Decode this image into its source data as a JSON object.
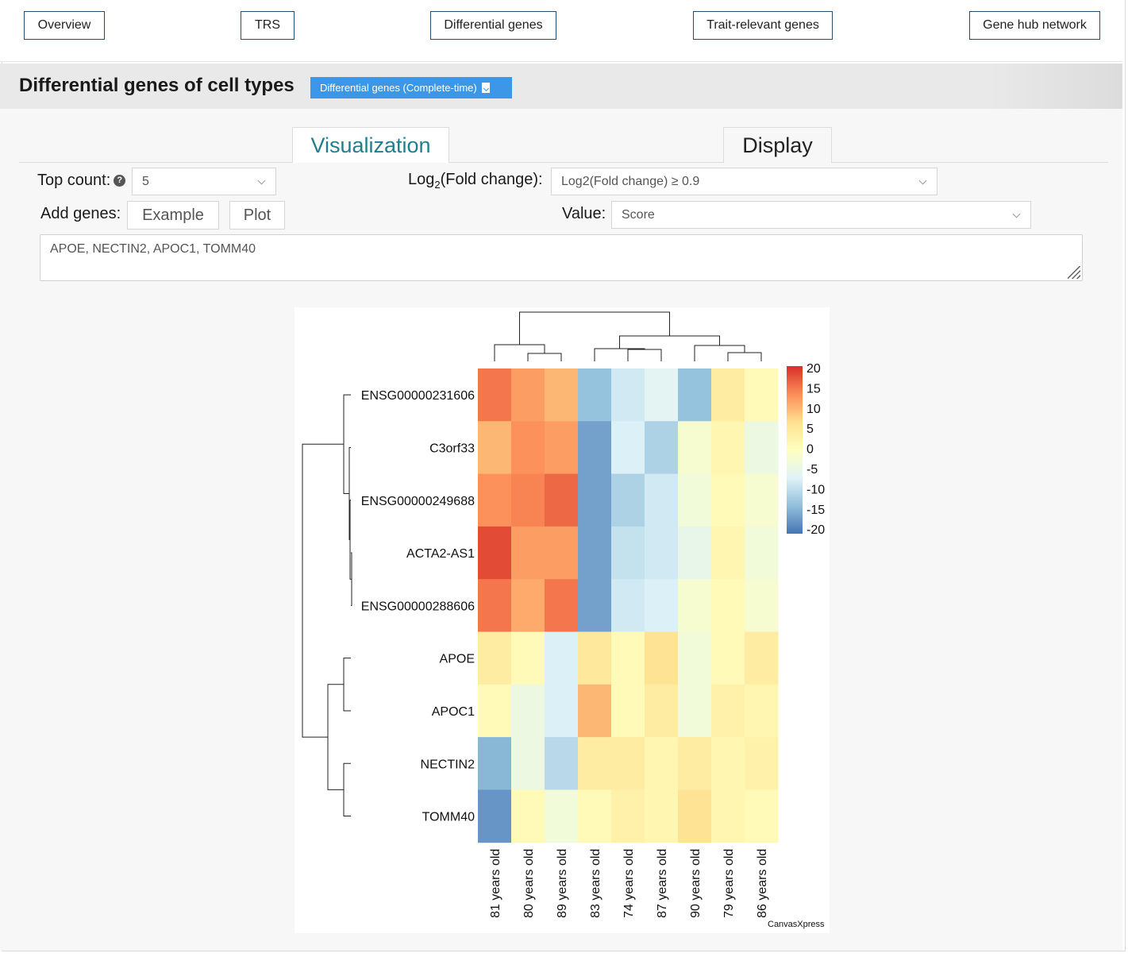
{
  "nav": {
    "items": [
      "Overview",
      "TRS",
      "Differential genes",
      "Trait-relevant genes",
      "Gene hub network"
    ]
  },
  "section": {
    "title": "Differential genes of cell types",
    "download_label": "Differential genes (Complete-time)"
  },
  "tabs": {
    "visualization": "Visualization",
    "display": "Display"
  },
  "controls": {
    "top_count_label": "Top count:",
    "top_count_help": "?",
    "top_count_value": "5",
    "fold_label_prefix": "Log",
    "fold_label_sub": "2",
    "fold_label_suffix": "(Fold change):",
    "fold_value": "Log2(Fold change) ≥ 0.9",
    "add_genes_label": "Add genes:",
    "example_button": "Example",
    "plot_button": "Plot",
    "value_label": "Value:",
    "value_select": "Score",
    "genes_text": "APOE, NECTIN2, APOC1, TOMM40"
  },
  "chart_data": {
    "type": "heatmap",
    "rows": [
      "ENSG00000231606",
      "C3orf33",
      "ENSG00000249688",
      "ACTA2-AS1",
      "ENSG00000288606",
      "APOE",
      "APOC1",
      "NECTIN2",
      "TOMM40"
    ],
    "columns": [
      "81 years old",
      "80 years old",
      "89 years old",
      "83 years old",
      "74 years old",
      "87 years old",
      "90 years old",
      "79 years old",
      "86 years old"
    ],
    "values": [
      [
        15,
        12,
        10,
        -13,
        -8,
        -6,
        -13,
        4,
        1
      ],
      [
        10,
        13,
        12,
        -16,
        -7,
        -11,
        -2,
        2,
        -4
      ],
      [
        13,
        14,
        16,
        -16,
        -11,
        -8,
        -3,
        1,
        -2
      ],
      [
        18,
        12,
        12,
        -16,
        -9,
        -8,
        -5,
        2,
        -3
      ],
      [
        15,
        11,
        15,
        -16,
        -8,
        -7,
        -2,
        1,
        -2
      ],
      [
        4,
        1,
        -7,
        5,
        1,
        6,
        -3,
        1,
        4
      ],
      [
        1,
        -4,
        -7,
        10,
        1,
        4,
        -3,
        3,
        2
      ],
      [
        -14,
        -4,
        -10,
        4,
        4,
        2,
        4,
        2,
        3
      ],
      [
        -17,
        1,
        -3,
        1,
        3,
        2,
        6,
        2,
        1
      ]
    ],
    "colorbar": {
      "ticks": [
        "20",
        "15",
        "10",
        "5",
        "0",
        "-5",
        "-10",
        "-15",
        "-20"
      ],
      "range": [
        -20,
        20
      ],
      "colors": [
        "#4575b4",
        "#91bfdb",
        "#e0f3f8",
        "#ffffbf",
        "#fee090",
        "#fc8d59",
        "#d73027"
      ]
    },
    "credit": "CanvasXpress"
  }
}
